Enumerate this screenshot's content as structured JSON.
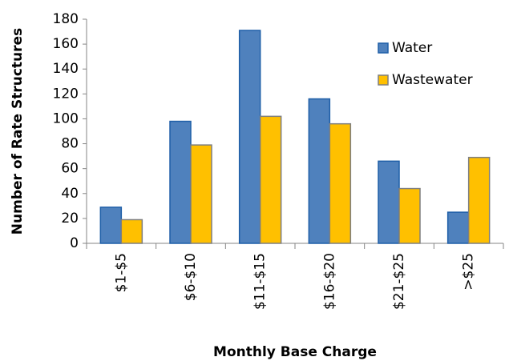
{
  "chart_data": {
    "type": "bar",
    "x_label": "Monthly Base Charge",
    "y_label": "Number of Rate Structures",
    "categories": [
      "$1-$5",
      "$6-$10",
      "$11-$15",
      "$16-$20",
      "$21-$25",
      ">$25"
    ],
    "series": [
      {
        "name": "Water",
        "color": "#4f81bd",
        "values": [
          29,
          98,
          171,
          116,
          66,
          25
        ]
      },
      {
        "name": "Wastewater",
        "color": "#ffc000",
        "values": [
          19,
          79,
          102,
          96,
          44,
          69
        ]
      }
    ],
    "ylim": [
      0,
      180
    ],
    "yticks": [
      0,
      20,
      40,
      60,
      80,
      100,
      120,
      140,
      160,
      180
    ],
    "grid": false,
    "legend": "upper right"
  }
}
